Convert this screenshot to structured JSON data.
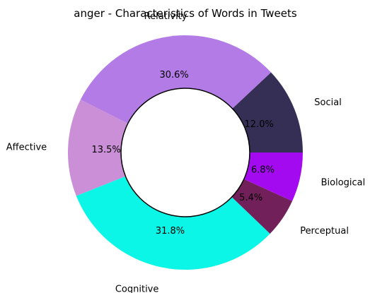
{
  "chart_data": {
    "type": "pie",
    "variant": "donut",
    "title": "anger - Characteristics of Words in Tweets",
    "categories": [
      "Social",
      "Relativity",
      "Affective",
      "Cognitive",
      "Perceptual",
      "Biological"
    ],
    "values": [
      12.0,
      30.6,
      13.5,
      31.8,
      5.4,
      6.8
    ],
    "value_labels": [
      "12.0%",
      "30.6%",
      "13.5%",
      "31.8%",
      "5.4%",
      "6.8%"
    ],
    "colors": [
      "#352f55",
      "#b37be6",
      "#cb8fd7",
      "#0bf6e6",
      "#72205a",
      "#a40aef"
    ],
    "legend": "none",
    "grid": false
  }
}
